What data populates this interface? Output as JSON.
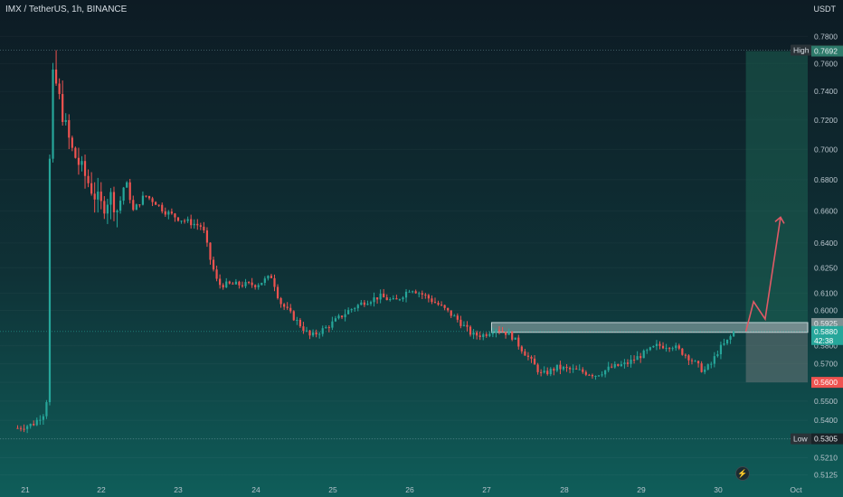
{
  "header": {
    "symbol": "IMX / TetherUS, 1h, BINANCE",
    "quote": "USDT"
  },
  "price_tags": {
    "high_label": "High",
    "high_value": "0.7699",
    "target_value": "0.7692",
    "entry_value": "0.5925",
    "current_value": "0.5880",
    "countdown": "42:38",
    "stop_value": "0.5600",
    "low_label": "Low",
    "low_value": "0.5305"
  },
  "colors": {
    "up": "#26a69a",
    "down": "#ef5350",
    "bg_top": "#0d1b24",
    "bg_bottom": "#0f5e5a",
    "profit_zone": "#1f6f5c",
    "loss_zone": "#6a7678",
    "entry_box": "#9fb5b7",
    "arrow": "#e05a66"
  },
  "icons": {
    "flash": "lightning-icon"
  },
  "chart_data": {
    "type": "candlestick",
    "title": "IMX / TetherUS, 1h, BINANCE",
    "quote_currency": "USDT",
    "x_ticks": [
      "21",
      "22",
      "23",
      "24",
      "25",
      "26",
      "27",
      "28",
      "29",
      "30",
      "Oct"
    ],
    "y_ticks": [
      0.78,
      0.76,
      0.74,
      0.72,
      0.7,
      0.68,
      0.66,
      0.64,
      0.625,
      0.61,
      0.6,
      0.58,
      0.57,
      0.56,
      0.55,
      0.54,
      0.5305,
      0.521,
      0.5125
    ],
    "y_range": [
      0.5105,
      0.783
    ],
    "scale": "log",
    "high": 0.7699,
    "low": 0.5305,
    "close_path": [
      [
        20.9,
        0.536
      ],
      [
        21.1,
        0.538
      ],
      [
        21.25,
        0.544
      ],
      [
        21.3,
        0.557
      ],
      [
        21.31,
        0.68
      ],
      [
        21.35,
        0.75
      ],
      [
        21.4,
        0.745
      ],
      [
        21.5,
        0.72
      ],
      [
        21.6,
        0.7
      ],
      [
        21.75,
        0.685
      ],
      [
        21.9,
        0.67
      ],
      [
        22.0,
        0.662
      ],
      [
        22.1,
        0.67
      ],
      [
        22.2,
        0.66
      ],
      [
        22.3,
        0.68
      ],
      [
        22.4,
        0.66
      ],
      [
        22.55,
        0.67
      ],
      [
        22.7,
        0.665
      ],
      [
        22.8,
        0.66
      ],
      [
        23.0,
        0.655
      ],
      [
        23.3,
        0.65
      ],
      [
        23.4,
        0.63
      ],
      [
        23.5,
        0.615
      ],
      [
        23.7,
        0.615
      ],
      [
        24.0,
        0.615
      ],
      [
        24.2,
        0.62
      ],
      [
        24.3,
        0.605
      ],
      [
        24.5,
        0.595
      ],
      [
        24.7,
        0.585
      ],
      [
        24.9,
        0.59
      ],
      [
        25.2,
        0.6
      ],
      [
        25.4,
        0.605
      ],
      [
        25.6,
        0.608
      ],
      [
        25.8,
        0.605
      ],
      [
        26.0,
        0.613
      ],
      [
        26.2,
        0.608
      ],
      [
        26.4,
        0.602
      ],
      [
        26.6,
        0.595
      ],
      [
        26.8,
        0.586
      ],
      [
        26.95,
        0.586
      ],
      [
        27.1,
        0.59
      ],
      [
        27.3,
        0.586
      ],
      [
        27.5,
        0.575
      ],
      [
        27.7,
        0.564
      ],
      [
        27.9,
        0.568
      ],
      [
        28.2,
        0.566
      ],
      [
        28.4,
        0.564
      ],
      [
        28.6,
        0.568
      ],
      [
        28.8,
        0.57
      ],
      [
        29.0,
        0.575
      ],
      [
        29.2,
        0.58
      ],
      [
        29.4,
        0.58
      ],
      [
        29.6,
        0.574
      ],
      [
        29.8,
        0.566
      ],
      [
        29.9,
        0.57
      ],
      [
        30.0,
        0.578
      ],
      [
        30.1,
        0.582
      ],
      [
        30.2,
        0.588
      ]
    ],
    "position": {
      "type": "long",
      "entry": 0.5925,
      "target": 0.7692,
      "stop": 0.56
    },
    "projection_arrow": [
      [
        30.35,
        0.588
      ],
      [
        30.45,
        0.605
      ],
      [
        30.6,
        0.595
      ],
      [
        30.8,
        0.656
      ]
    ]
  }
}
